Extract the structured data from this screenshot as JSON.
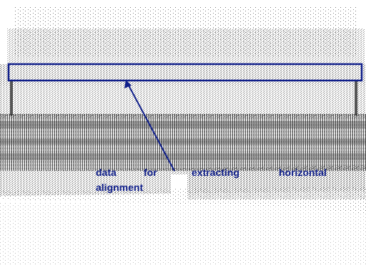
{
  "annotation": {
    "words": [
      "data",
      "for",
      "extracting",
      "horizontal",
      "alignment"
    ]
  },
  "colors": {
    "annotation": "#101f8a",
    "points": "#3c3c3c",
    "background": "#ffffff"
  }
}
